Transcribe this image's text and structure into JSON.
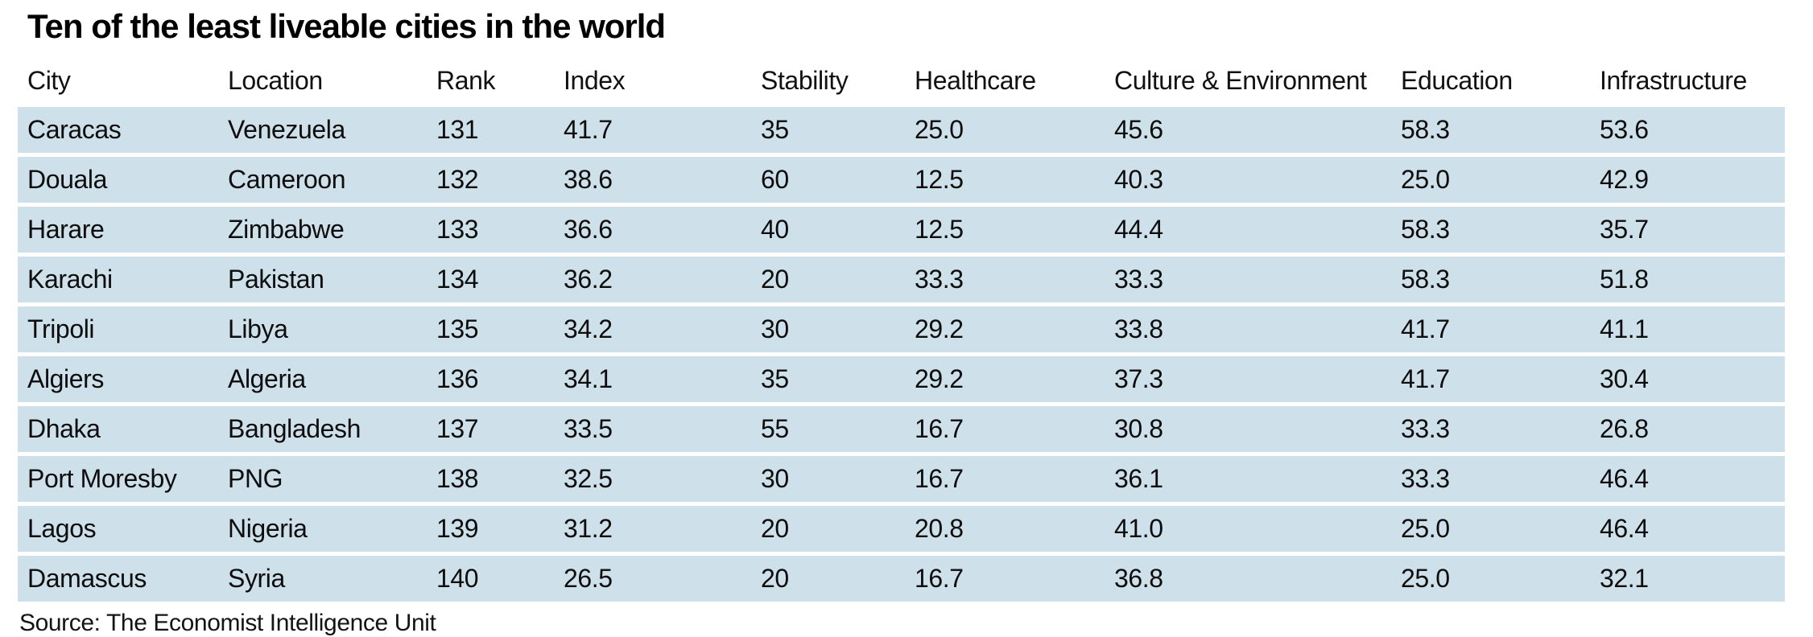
{
  "chart_data": {
    "type": "table",
    "title": "Ten of the least liveable cities in the world",
    "columns": [
      "City",
      "Location",
      "Rank",
      "Index",
      "Stability",
      "Healthcare",
      "Culture & Environment",
      "Education",
      "Infrastructure"
    ],
    "rows": [
      [
        "Caracas",
        "Venezuela",
        "131",
        "41.7",
        "35",
        "25.0",
        "45.6",
        "58.3",
        "53.6"
      ],
      [
        "Douala",
        "Cameroon",
        "132",
        "38.6",
        "60",
        "12.5",
        "40.3",
        "25.0",
        "42.9"
      ],
      [
        "Harare",
        "Zimbabwe",
        "133",
        "36.6",
        "40",
        "12.5",
        "44.4",
        "58.3",
        "35.7"
      ],
      [
        "Karachi",
        "Pakistan",
        "134",
        "36.2",
        "20",
        "33.3",
        "33.3",
        "58.3",
        "51.8"
      ],
      [
        "Tripoli",
        "Libya",
        "135",
        "34.2",
        "30",
        "29.2",
        "33.8",
        "41.7",
        "41.1"
      ],
      [
        "Algiers",
        "Algeria",
        "136",
        "34.1",
        "35",
        "29.2",
        "37.3",
        "41.7",
        "30.4"
      ],
      [
        "Dhaka",
        "Bangladesh",
        "137",
        "33.5",
        "55",
        "16.7",
        "30.8",
        "33.3",
        "26.8"
      ],
      [
        "Port Moresby",
        "PNG",
        "138",
        "32.5",
        "30",
        "16.7",
        "36.1",
        "33.3",
        "46.4"
      ],
      [
        "Lagos",
        "Nigeria",
        "139",
        "31.2",
        "20",
        "20.8",
        "41.0",
        "25.0",
        "46.4"
      ],
      [
        "Damascus",
        "Syria",
        "140",
        "26.5",
        "20",
        "16.7",
        "36.8",
        "25.0",
        "32.1"
      ]
    ],
    "source": "Source: The Economist Intelligence Unit",
    "layout": {
      "legend": "none",
      "grid": "off",
      "row_striping": "solid bands with white gaps"
    },
    "colors": {
      "row_background": "#cee0e9",
      "text": "#0d0d0d",
      "page_background": "#ffffff"
    }
  }
}
